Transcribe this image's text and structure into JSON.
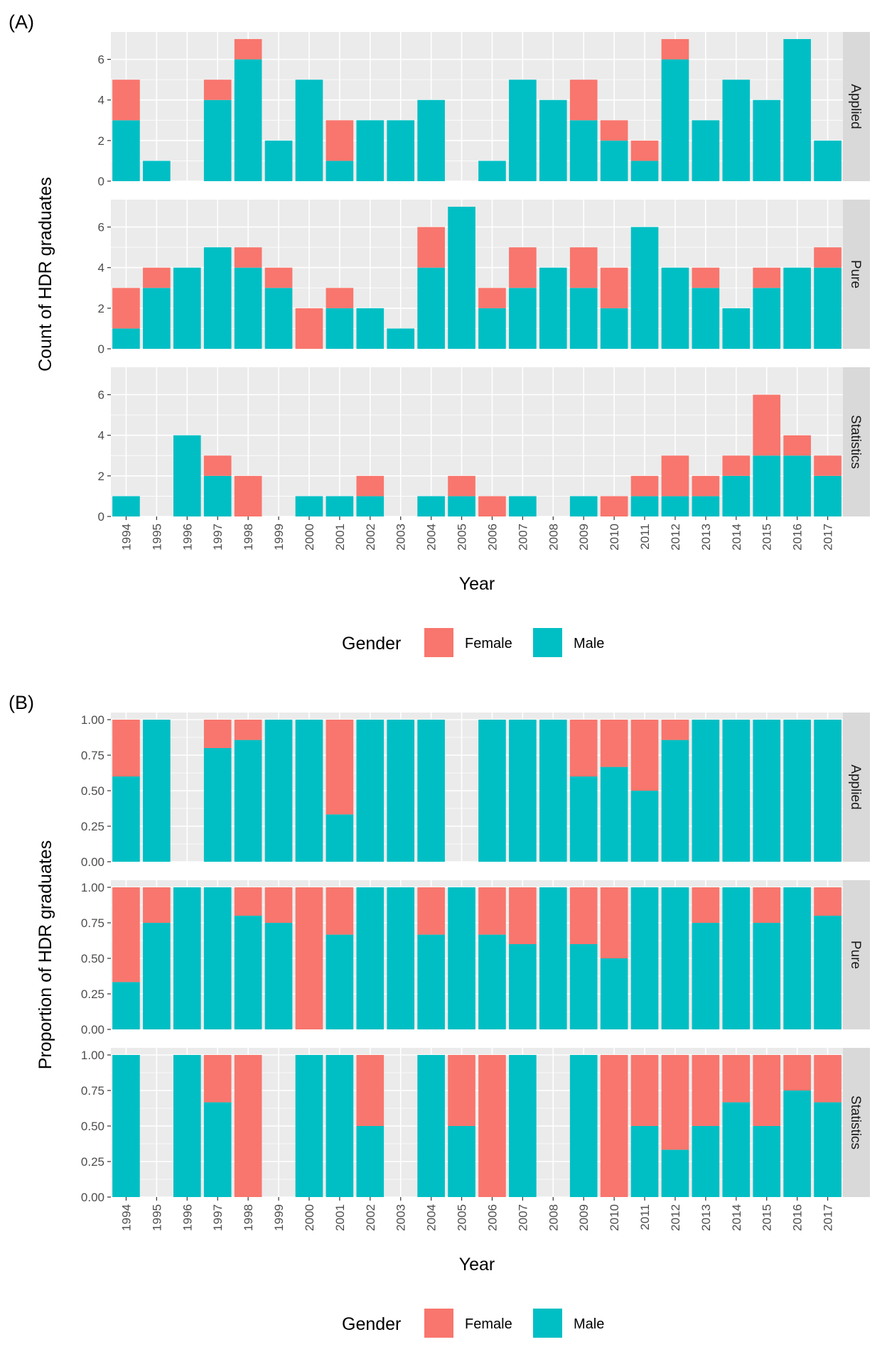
{
  "colors": {
    "female": "#F8766D",
    "male": "#00BFC4",
    "panel_bg": "#EBEBEB",
    "strip_bg": "#D9D9D9",
    "grid": "#FFFFFF"
  },
  "chart_data": [
    {
      "type": "bar",
      "stacked": true,
      "tag": "(A)",
      "xlabel": "Year",
      "ylabel": "Count of HDR graduates",
      "ylim": [
        0,
        7.35
      ],
      "yticks": [
        0,
        2,
        4,
        6
      ],
      "ytick_labels": [
        "0",
        "2",
        "4",
        "6"
      ],
      "grid": true,
      "categories": [
        "1994",
        "1995",
        "1996",
        "1997",
        "1998",
        "1999",
        "2000",
        "2001",
        "2002",
        "2003",
        "2004",
        "2005",
        "2006",
        "2007",
        "2008",
        "2009",
        "2010",
        "2011",
        "2012",
        "2013",
        "2014",
        "2015",
        "2016",
        "2017"
      ],
      "facets": [
        {
          "label": "Applied",
          "series": [
            {
              "name": "Male",
              "values": [
                3,
                1,
                0,
                4,
                6,
                2,
                5,
                1,
                3,
                3,
                4,
                0,
                1,
                5,
                4,
                3,
                2,
                1,
                6,
                3,
                5,
                4,
                7,
                2
              ]
            },
            {
              "name": "Female",
              "values": [
                2,
                0,
                0,
                1,
                1,
                0,
                0,
                2,
                0,
                0,
                0,
                0,
                0,
                0,
                0,
                2,
                1,
                1,
                1,
                0,
                0,
                0,
                0,
                0
              ]
            }
          ]
        },
        {
          "label": "Pure",
          "series": [
            {
              "name": "Male",
              "values": [
                1,
                3,
                4,
                5,
                4,
                3,
                0,
                2,
                2,
                1,
                4,
                7,
                2,
                3,
                4,
                3,
                2,
                6,
                4,
                3,
                2,
                3,
                4,
                4
              ]
            },
            {
              "name": "Female",
              "values": [
                2,
                1,
                0,
                0,
                1,
                1,
                2,
                1,
                0,
                0,
                2,
                0,
                1,
                2,
                0,
                2,
                2,
                0,
                0,
                1,
                0,
                1,
                0,
                1
              ]
            }
          ]
        },
        {
          "label": "Statistics",
          "series": [
            {
              "name": "Male",
              "values": [
                1,
                0,
                4,
                2,
                0,
                0,
                1,
                1,
                1,
                0,
                1,
                1,
                0,
                1,
                0,
                1,
                0,
                1,
                1,
                1,
                2,
                3,
                3,
                2
              ]
            },
            {
              "name": "Female",
              "values": [
                0,
                0,
                0,
                1,
                2,
                0,
                0,
                0,
                1,
                0,
                0,
                1,
                1,
                0,
                0,
                0,
                1,
                1,
                2,
                1,
                1,
                3,
                1,
                1
              ]
            }
          ]
        }
      ],
      "legend": {
        "title": "Gender",
        "position": "bottom",
        "items": [
          "Female",
          "Male"
        ]
      }
    },
    {
      "type": "bar",
      "stacked": true,
      "tag": "(B)",
      "xlabel": "Year",
      "ylabel": "Proportion of HDR graduates",
      "ylim": [
        0,
        1.05
      ],
      "yticks": [
        0,
        0.25,
        0.5,
        0.75,
        1
      ],
      "ytick_labels": [
        "0.00",
        "0.25",
        "0.50",
        "0.75",
        "1.00"
      ],
      "grid": true,
      "categories": [
        "1994",
        "1995",
        "1996",
        "1997",
        "1998",
        "1999",
        "2000",
        "2001",
        "2002",
        "2003",
        "2004",
        "2005",
        "2006",
        "2007",
        "2008",
        "2009",
        "2010",
        "2011",
        "2012",
        "2013",
        "2014",
        "2015",
        "2016",
        "2017"
      ],
      "facets": [
        {
          "label": "Applied",
          "series": [
            {
              "name": "Male",
              "values": [
                0.6,
                1,
                null,
                0.8,
                0.857,
                1,
                1,
                0.333,
                1,
                1,
                1,
                null,
                1,
                1,
                1,
                0.6,
                0.667,
                0.5,
                0.857,
                1,
                1,
                1,
                1,
                1
              ]
            },
            {
              "name": "Female",
              "values": [
                0.4,
                0,
                null,
                0.2,
                0.143,
                0,
                0,
                0.667,
                0,
                0,
                0,
                null,
                0,
                0,
                0,
                0.4,
                0.333,
                0.5,
                0.143,
                0,
                0,
                0,
                0,
                0
              ]
            }
          ]
        },
        {
          "label": "Pure",
          "series": [
            {
              "name": "Male",
              "values": [
                0.333,
                0.75,
                1,
                1,
                0.8,
                0.75,
                0,
                0.667,
                1,
                1,
                0.667,
                1,
                0.667,
                0.6,
                1,
                0.6,
                0.5,
                1,
                1,
                0.75,
                1,
                0.75,
                1,
                0.8
              ]
            },
            {
              "name": "Female",
              "values": [
                0.667,
                0.25,
                0,
                0,
                0.2,
                0.25,
                1,
                0.333,
                0,
                0,
                0.333,
                0,
                0.333,
                0.4,
                0,
                0.4,
                0.5,
                0,
                0,
                0.25,
                0,
                0.25,
                0,
                0.2
              ]
            }
          ]
        },
        {
          "label": "Statistics",
          "series": [
            {
              "name": "Male",
              "values": [
                1,
                null,
                1,
                0.667,
                0,
                null,
                1,
                1,
                0.5,
                null,
                1,
                0.5,
                0,
                1,
                null,
                1,
                0,
                0.5,
                0.333,
                0.5,
                0.667,
                0.5,
                0.75,
                0.667
              ]
            },
            {
              "name": "Female",
              "values": [
                0,
                null,
                0,
                0.333,
                1,
                null,
                0,
                0,
                0.5,
                null,
                0,
                0.5,
                1,
                0,
                null,
                0,
                1,
                0.5,
                0.667,
                0.5,
                0.333,
                0.5,
                0.25,
                0.333
              ]
            }
          ]
        }
      ],
      "legend": {
        "title": "Gender",
        "position": "bottom",
        "items": [
          "Female",
          "Male"
        ]
      }
    }
  ]
}
